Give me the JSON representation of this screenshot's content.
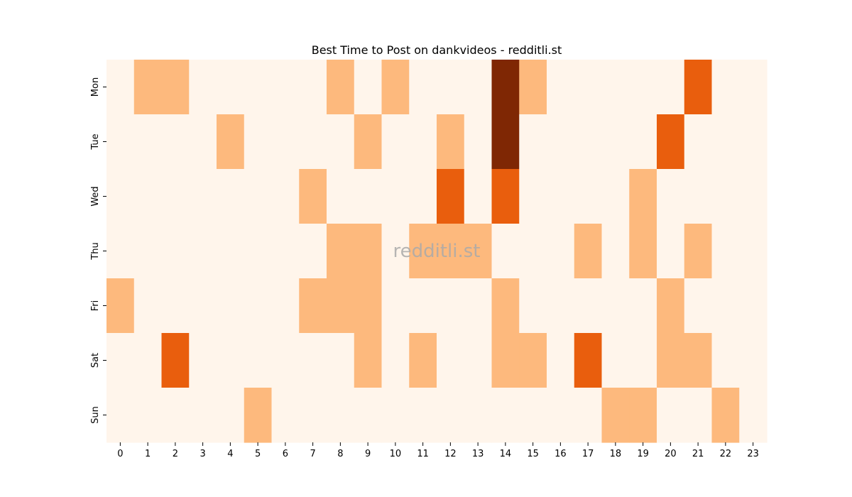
{
  "chart_data": {
    "type": "heatmap",
    "title": "Best Time to Post on dankvideos - redditli.st",
    "xlabel": "",
    "ylabel": "",
    "x_categories": [
      "0",
      "1",
      "2",
      "3",
      "4",
      "5",
      "6",
      "7",
      "8",
      "9",
      "10",
      "11",
      "12",
      "13",
      "14",
      "15",
      "16",
      "17",
      "18",
      "19",
      "20",
      "21",
      "22",
      "23"
    ],
    "y_categories": [
      "Mon",
      "Tue",
      "Wed",
      "Thu",
      "Fri",
      "Sat",
      "Sun"
    ],
    "values": [
      [
        0,
        1,
        1,
        0,
        0,
        0,
        0,
        0,
        1,
        0,
        1,
        0,
        0,
        0,
        3,
        1,
        0,
        0,
        0,
        0,
        0,
        2,
        0,
        0
      ],
      [
        0,
        0,
        0,
        0,
        1,
        0,
        0,
        0,
        0,
        1,
        0,
        0,
        1,
        0,
        3,
        0,
        0,
        0,
        0,
        0,
        2,
        0,
        0,
        0
      ],
      [
        0,
        0,
        0,
        0,
        0,
        0,
        0,
        1,
        0,
        0,
        0,
        0,
        2,
        0,
        2,
        0,
        0,
        0,
        0,
        1,
        0,
        0,
        0,
        0
      ],
      [
        0,
        0,
        0,
        0,
        0,
        0,
        0,
        0,
        1,
        1,
        0,
        1,
        1,
        1,
        0,
        0,
        0,
        1,
        0,
        1,
        0,
        1,
        0,
        0
      ],
      [
        1,
        0,
        0,
        0,
        0,
        0,
        0,
        1,
        1,
        1,
        0,
        0,
        0,
        0,
        1,
        0,
        0,
        0,
        0,
        0,
        1,
        0,
        0,
        0
      ],
      [
        0,
        0,
        2,
        0,
        0,
        0,
        0,
        0,
        0,
        1,
        0,
        1,
        0,
        0,
        1,
        1,
        0,
        2,
        0,
        0,
        1,
        1,
        0,
        0
      ],
      [
        0,
        0,
        0,
        0,
        0,
        1,
        0,
        0,
        0,
        0,
        0,
        0,
        0,
        0,
        0,
        0,
        0,
        0,
        1,
        1,
        0,
        0,
        1,
        0
      ]
    ],
    "value_range": [
      0,
      3
    ],
    "colormap": "Oranges",
    "level_colors": [
      "#fff5eb",
      "#fdb97d",
      "#e95e0d",
      "#7f2704"
    ],
    "colorbar": false,
    "grid": false,
    "watermark": "redditli.st"
  }
}
